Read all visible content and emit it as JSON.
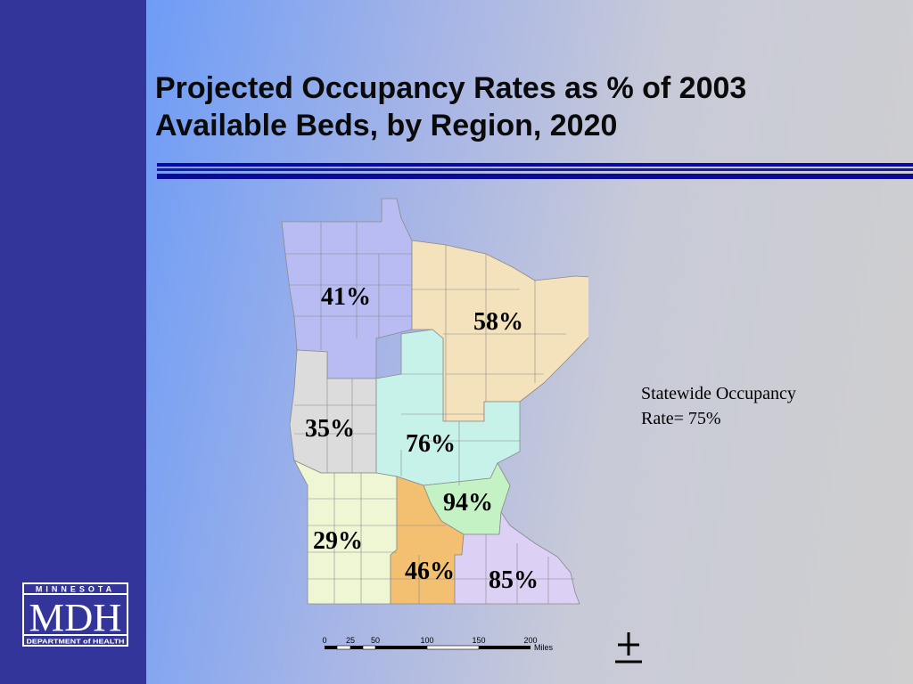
{
  "slide": {
    "title_line1": "Projected Occupancy Rates as % of 2003",
    "title_line2": "Available Beds, by Region, 2020",
    "statewide_line1": "Statewide Occupancy",
    "statewide_line2": "Rate= 75%"
  },
  "regions": [
    {
      "name": "northwest",
      "label": "41%",
      "value": 41,
      "color": "#b8bcf2"
    },
    {
      "name": "northeast",
      "label": "58%",
      "value": 58,
      "color": "#f4e2bc"
    },
    {
      "name": "west",
      "label": "35%",
      "value": 35,
      "color": "#dcdcdc"
    },
    {
      "name": "central",
      "label": "76%",
      "value": 76,
      "color": "#c6f2ea"
    },
    {
      "name": "metro",
      "label": "94%",
      "value": 94,
      "color": "#c4f2c4"
    },
    {
      "name": "southwest",
      "label": "29%",
      "value": 29,
      "color": "#eef6d4"
    },
    {
      "name": "south-central",
      "label": "46%",
      "value": 46,
      "color": "#f2c070"
    },
    {
      "name": "southeast",
      "label": "85%",
      "value": 85,
      "color": "#dcd0f4"
    }
  ],
  "logo": {
    "top_text": "MINNESOTA",
    "main_text": "MDH",
    "bottom_text": "DEPARTMENT of HEALTH",
    "color": "#33359a"
  },
  "scale_bar": {
    "ticks": [
      "0",
      "25",
      "50",
      "100",
      "150",
      "200"
    ],
    "unit": "Miles"
  },
  "north_arrow_icon": "north-arrow-icon"
}
